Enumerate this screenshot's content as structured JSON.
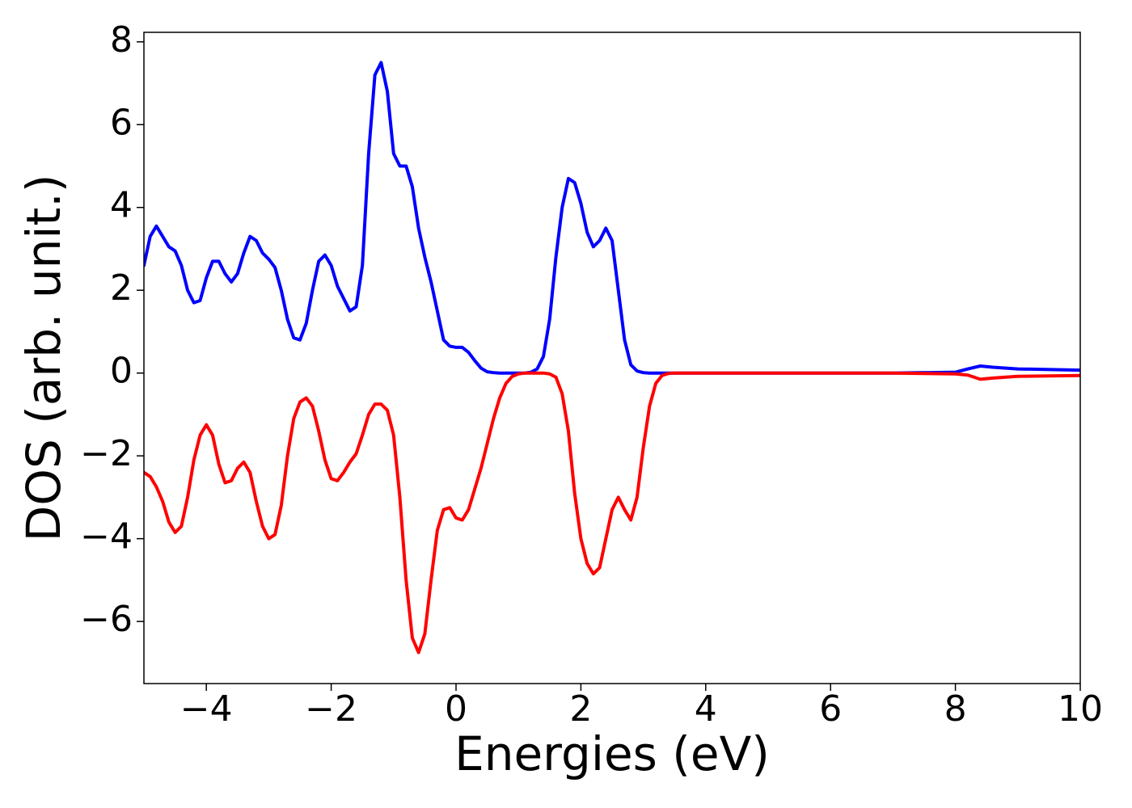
{
  "chart_data": {
    "type": "line",
    "xlabel": "Energies (eV)",
    "ylabel": "DOS (arb. unit.)",
    "xlim": [
      -5,
      10
    ],
    "ylim": [
      -7.5,
      8.23
    ],
    "xticks": [
      {
        "value": -4,
        "label": "−4"
      },
      {
        "value": -2,
        "label": "−2"
      },
      0,
      2,
      4,
      6,
      8,
      10
    ],
    "yticks": [
      {
        "value": -6,
        "label": "−6"
      },
      {
        "value": -4,
        "label": "−4"
      },
      {
        "value": -2,
        "label": "−2"
      },
      0,
      2,
      4,
      6,
      8
    ],
    "x": [
      -5,
      -4.9,
      -4.8,
      -4.7,
      -4.6,
      -4.5,
      -4.4,
      -4.3,
      -4.2,
      -4.1,
      -4,
      -3.9,
      -3.8,
      -3.7,
      -3.6,
      -3.5,
      -3.4,
      -3.3,
      -3.2,
      -3.1,
      -3,
      -2.9,
      -2.8,
      -2.7,
      -2.6,
      -2.5,
      -2.4,
      -2.3,
      -2.2,
      -2.1,
      -2,
      -1.9,
      -1.8,
      -1.7,
      -1.6,
      -1.5,
      -1.4,
      -1.3,
      -1.2,
      -1.1,
      -1,
      -0.9,
      -0.8,
      -0.7,
      -0.6,
      -0.5,
      -0.4,
      -0.3,
      -0.2,
      -0.1,
      0,
      0.1,
      0.2,
      0.3,
      0.4,
      0.5,
      0.6,
      0.7,
      0.8,
      0.9,
      1,
      1.1,
      1.2,
      1.3,
      1.4,
      1.5,
      1.6,
      1.7,
      1.8,
      1.9,
      2,
      2.1,
      2.2,
      2.3,
      2.4,
      2.5,
      2.6,
      2.7,
      2.8,
      2.9,
      3,
      3.1,
      3.2,
      3.3,
      3.4,
      3.5,
      4,
      5,
      6,
      7,
      8,
      8.2,
      8.4,
      8.6,
      9,
      10
    ],
    "series": [
      {
        "color": "#0000ff",
        "values": [
          2.6,
          3.3,
          3.55,
          3.3,
          3.05,
          2.95,
          2.6,
          2.0,
          1.7,
          1.75,
          2.3,
          2.7,
          2.7,
          2.4,
          2.2,
          2.4,
          2.9,
          3.3,
          3.2,
          2.9,
          2.75,
          2.55,
          2.0,
          1.3,
          0.85,
          0.8,
          1.2,
          2.0,
          2.7,
          2.85,
          2.6,
          2.1,
          1.8,
          1.5,
          1.6,
          2.6,
          5.3,
          7.2,
          7.5,
          6.8,
          5.3,
          5.0,
          5.0,
          4.5,
          3.5,
          2.8,
          2.2,
          1.5,
          0.8,
          0.65,
          0.62,
          0.62,
          0.5,
          0.3,
          0.12,
          0.03,
          0.01,
          0,
          0,
          0,
          0,
          0,
          0.02,
          0.1,
          0.4,
          1.3,
          2.8,
          4.0,
          4.7,
          4.6,
          4.1,
          3.4,
          3.05,
          3.2,
          3.5,
          3.2,
          2.0,
          0.8,
          0.2,
          0.05,
          0.01,
          0,
          0,
          0,
          0,
          0,
          0,
          0,
          0,
          0,
          0.02,
          0.1,
          0.17,
          0.14,
          0.1,
          0.07
        ]
      },
      {
        "color": "#ff0000",
        "values": [
          -2.4,
          -2.5,
          -2.75,
          -3.1,
          -3.6,
          -3.85,
          -3.7,
          -3.0,
          -2.1,
          -1.5,
          -1.25,
          -1.5,
          -2.2,
          -2.65,
          -2.6,
          -2.3,
          -2.15,
          -2.4,
          -3.1,
          -3.7,
          -4.0,
          -3.9,
          -3.2,
          -2.0,
          -1.1,
          -0.7,
          -0.6,
          -0.8,
          -1.4,
          -2.1,
          -2.55,
          -2.6,
          -2.4,
          -2.15,
          -1.95,
          -1.5,
          -1.0,
          -0.75,
          -0.75,
          -0.9,
          -1.5,
          -3.0,
          -5.0,
          -6.4,
          -6.75,
          -6.3,
          -5.0,
          -3.8,
          -3.3,
          -3.25,
          -3.5,
          -3.55,
          -3.3,
          -2.8,
          -2.3,
          -1.7,
          -1.1,
          -0.6,
          -0.25,
          -0.08,
          -0.02,
          0,
          0,
          0,
          0,
          -0.02,
          -0.1,
          -0.5,
          -1.4,
          -2.9,
          -4.0,
          -4.6,
          -4.85,
          -4.7,
          -4.0,
          -3.3,
          -3.0,
          -3.3,
          -3.55,
          -3.0,
          -1.8,
          -0.8,
          -0.25,
          -0.06,
          -0.01,
          0,
          0,
          0,
          0,
          0,
          -0.02,
          -0.05,
          -0.15,
          -0.12,
          -0.08,
          -0.06
        ]
      }
    ]
  }
}
